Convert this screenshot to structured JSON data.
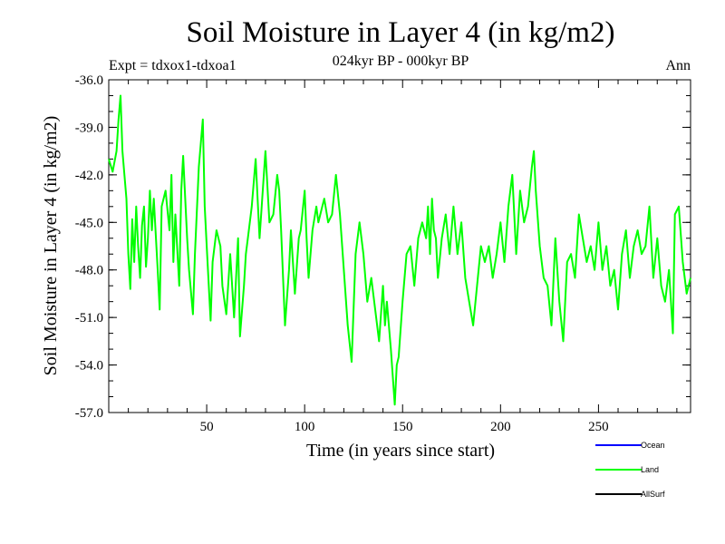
{
  "chart_data": {
    "type": "line",
    "title": "Soil Moisture in Layer 4 (in kg/m2)",
    "subtitle": "024kyr BP - 000kyr BP",
    "experiment": "Expt = tdxox1-tdxoa1",
    "season": "Ann",
    "xlabel": "Time (in years since start)",
    "ylabel": "Soil Moisture in Layer 4 (in kg/m2)",
    "xlim": [
      0,
      297
    ],
    "ylim": [
      -57.0,
      -36.0
    ],
    "xticks": [
      50,
      100,
      150,
      200,
      250
    ],
    "xtick_labels": [
      "50",
      "100",
      "150",
      "200",
      "250"
    ],
    "yticks": [
      -57.0,
      -54.0,
      -51.0,
      -48.0,
      -45.0,
      -42.0,
      -39.0,
      -36.0
    ],
    "ytick_labels": [
      "-57.0",
      "-54.0",
      "-51.0",
      "-48.0",
      "-45.0",
      "-42.0",
      "-39.0",
      "-36.0"
    ],
    "legend": [
      {
        "name": "Ocean",
        "color": "#0000ff"
      },
      {
        "name": "Land",
        "color": "#00ff00"
      },
      {
        "name": "AllSurf",
        "color": "#000000"
      }
    ],
    "series": [
      {
        "name": "Land",
        "color": "#00ff00",
        "x": [
          0,
          2,
          4,
          5,
          6,
          7,
          8,
          9,
          10,
          11,
          12,
          13,
          14,
          15,
          16,
          17,
          18,
          19,
          20,
          21,
          22,
          23,
          25,
          26,
          27,
          29,
          31,
          32,
          33,
          34,
          36,
          37,
          38,
          40,
          41,
          43,
          44,
          46,
          48,
          49,
          50,
          52,
          53,
          55,
          57,
          58,
          60,
          62,
          64,
          66,
          67,
          69,
          70,
          71,
          73,
          75,
          77,
          80,
          82,
          84,
          86,
          87,
          88,
          90,
          92,
          93,
          94,
          95,
          97,
          98,
          100,
          101,
          102,
          104,
          106,
          107,
          109,
          110,
          112,
          114,
          116,
          118,
          120,
          122,
          124,
          126,
          128,
          130,
          132,
          134,
          136,
          138,
          140,
          141,
          142,
          144,
          146,
          147,
          148,
          150,
          152,
          154,
          156,
          158,
          160,
          162,
          163,
          164,
          165,
          166,
          167,
          168,
          170,
          172,
          174,
          176,
          178,
          180,
          182,
          184,
          186,
          188,
          190,
          192,
          194,
          196,
          198,
          200,
          202,
          204,
          206,
          208,
          210,
          212,
          214,
          216,
          217,
          218,
          220,
          222,
          224,
          226,
          228,
          230,
          232,
          234,
          236,
          238,
          240,
          242,
          244,
          246,
          248,
          250,
          252,
          254,
          256,
          258,
          260,
          262,
          264,
          266,
          268,
          270,
          272,
          274,
          276,
          278,
          280,
          282,
          284,
          286,
          288,
          289,
          291,
          293,
          295,
          297
        ],
        "values": [
          -41.0,
          -41.8,
          -40.5,
          -38.5,
          -37.0,
          -40.5,
          -42.0,
          -43.5,
          -47.0,
          -49.2,
          -44.8,
          -47.5,
          -44.0,
          -46.5,
          -48.5,
          -45.2,
          -44.0,
          -47.8,
          -46.0,
          -43.0,
          -45.5,
          -43.5,
          -48.0,
          -50.5,
          -44.0,
          -43.0,
          -45.5,
          -42.0,
          -47.5,
          -44.5,
          -49.0,
          -43.0,
          -40.8,
          -46.0,
          -48.0,
          -50.8,
          -47.0,
          -41.5,
          -38.5,
          -44.0,
          -46.5,
          -51.2,
          -47.5,
          -45.5,
          -46.5,
          -49.0,
          -50.8,
          -47.0,
          -51.0,
          -46.0,
          -52.2,
          -49.0,
          -47.0,
          -46.0,
          -44.0,
          -41.0,
          -46.0,
          -40.5,
          -45.0,
          -44.5,
          -42.0,
          -43.0,
          -45.5,
          -51.5,
          -48.0,
          -45.5,
          -47.5,
          -49.5,
          -46.0,
          -45.5,
          -43.0,
          -46.0,
          -48.5,
          -45.5,
          -44.0,
          -45.0,
          -44.0,
          -43.5,
          -45.0,
          -44.5,
          -42.0,
          -44.5,
          -48.0,
          -51.5,
          -53.8,
          -47.0,
          -45.0,
          -47.0,
          -50.0,
          -48.5,
          -50.5,
          -52.5,
          -49.0,
          -51.5,
          -50.0,
          -53.0,
          -56.5,
          -54.0,
          -53.5,
          -50.0,
          -47.0,
          -46.5,
          -49.0,
          -46.0,
          -45.0,
          -46.0,
          -44.0,
          -47.0,
          -43.5,
          -45.5,
          -46.0,
          -48.5,
          -46.0,
          -44.5,
          -47.0,
          -44.0,
          -47.0,
          -45.0,
          -48.5,
          -50.0,
          -51.5,
          -49.0,
          -46.5,
          -47.5,
          -46.5,
          -48.5,
          -47.0,
          -45.0,
          -47.5,
          -44.0,
          -42.0,
          -47.0,
          -43.0,
          -45.0,
          -44.0,
          -41.5,
          -40.5,
          -43.0,
          -46.5,
          -48.5,
          -49.0,
          -51.5,
          -46.0,
          -50.0,
          -52.5,
          -47.5,
          -47.0,
          -48.5,
          -44.5,
          -46.0,
          -47.5,
          -46.5,
          -48.0,
          -45.0,
          -48.0,
          -46.5,
          -49.0,
          -48.0,
          -50.5,
          -47.0,
          -45.5,
          -48.5,
          -46.5,
          -45.5,
          -47.0,
          -46.5,
          -44.0,
          -48.5,
          -46.0,
          -49.0,
          -50.0,
          -48.0,
          -52.0,
          -44.5,
          -44.0,
          -47.5,
          -49.5,
          -48.5
        ]
      }
    ]
  }
}
